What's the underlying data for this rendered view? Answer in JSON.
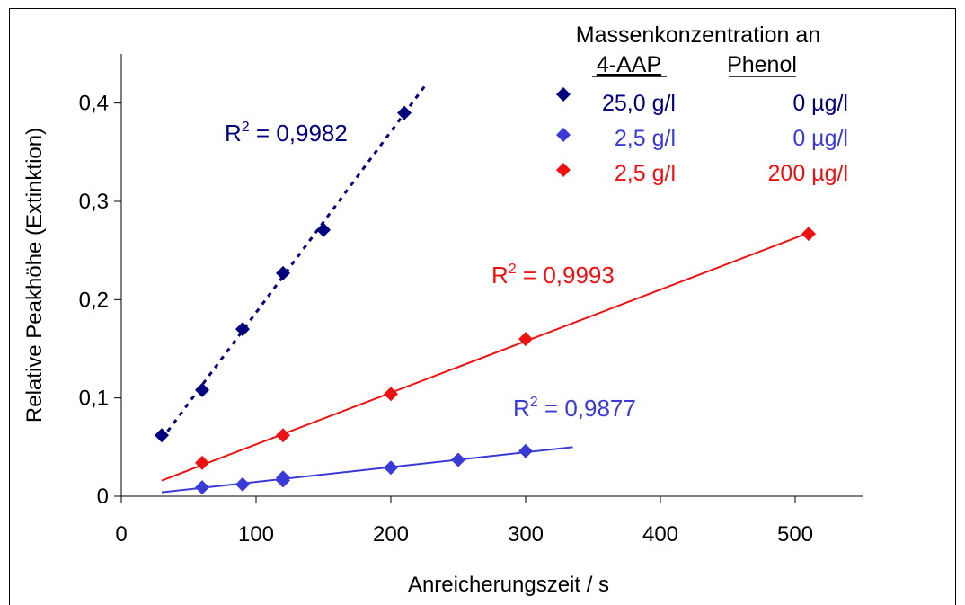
{
  "chart_data": {
    "type": "scatter",
    "xlabel": "Anreicherungszeit / s",
    "ylabel": "Relative Peakhöhe (Extinktion)",
    "xlim": [
      0,
      550
    ],
    "ylim": [
      0,
      0.45
    ],
    "x_ticks": [
      0,
      100,
      200,
      300,
      400,
      500
    ],
    "x_tick_labels": [
      "0",
      "100",
      "200",
      "300",
      "400",
      "500"
    ],
    "y_ticks": [
      0,
      0.1,
      0.2,
      0.3,
      0.4
    ],
    "y_tick_labels": [
      "0",
      "0,1",
      "0,2",
      "0,3",
      "0,4"
    ],
    "grid": false,
    "legend": {
      "title": "Massenkonzentration an",
      "col1_header": "4-AAP",
      "col2_header": "Phenol",
      "position": "top-right"
    },
    "series": [
      {
        "aap": "25,0 g/l",
        "phenol": "0 µg/l",
        "color": "#00007e",
        "line_style": "dotted",
        "x": [
          30,
          60,
          90,
          120,
          150,
          210
        ],
        "y": [
          0.062,
          0.108,
          0.17,
          0.227,
          0.271,
          0.39
        ],
        "fit": {
          "x": [
            30,
            225
          ],
          "y": [
            0.058,
            0.417
          ]
        },
        "r2_prefix": "R",
        "r2_sup": "2",
        "r2_value": " = 0,9982"
      },
      {
        "aap": "2,5 g/l",
        "phenol": "0 µg/l",
        "color": "#3a3ad6",
        "line_style": "solid",
        "x": [
          60,
          90,
          120,
          120,
          200,
          250,
          300
        ],
        "y": [
          0.009,
          0.012,
          0.016,
          0.019,
          0.029,
          0.037,
          0.046
        ],
        "fit": {
          "x": [
            30,
            335
          ],
          "y": [
            0.004,
            0.05
          ]
        },
        "r2_prefix": "R",
        "r2_sup": "2",
        "r2_value": " = 0,9877"
      },
      {
        "aap": "2,5 g/l",
        "phenol": "200 µg/l",
        "color": "#ee1111",
        "line_style": "solid",
        "x": [
          60,
          120,
          200,
          300,
          510
        ],
        "y": [
          0.034,
          0.062,
          0.104,
          0.16,
          0.267
        ],
        "fit": {
          "x": [
            30,
            510
          ],
          "y": [
            0.016,
            0.268
          ]
        },
        "r2_prefix": "R",
        "r2_sup": "2",
        "r2_value": " = 0,9993"
      }
    ]
  }
}
